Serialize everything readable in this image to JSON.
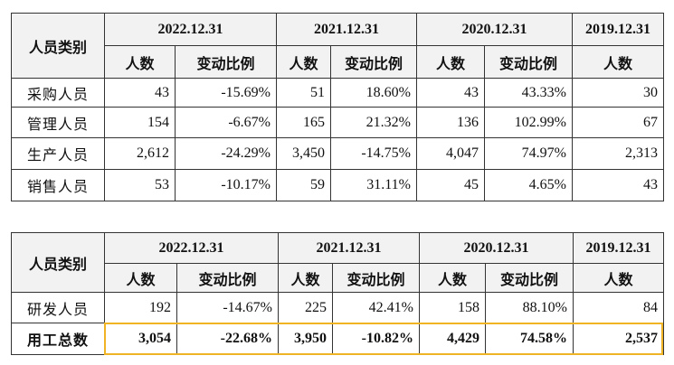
{
  "tables": [
    {
      "header": {
        "category": "人员类别",
        "periods": [
          "2022.12.31",
          "2021.12.31",
          "2020.12.31",
          "2019.12.31"
        ],
        "subheaders": [
          "人数",
          "变动比例",
          "人数",
          "变动比例",
          "人数",
          "变动比例",
          "人数"
        ]
      },
      "rows": [
        [
          "采购人员",
          "43",
          "-15.69%",
          "51",
          "18.60%",
          "43",
          "43.33%",
          "30"
        ],
        [
          "管理人员",
          "154",
          "-6.67%",
          "165",
          "21.32%",
          "136",
          "102.99%",
          "67"
        ],
        [
          "生产人员",
          "2,612",
          "-24.29%",
          "3,450",
          "-14.75%",
          "4,047",
          "74.97%",
          "2,313"
        ],
        [
          "销售人员",
          "53",
          "-10.17%",
          "59",
          "31.11%",
          "45",
          "4.65%",
          "43"
        ]
      ]
    },
    {
      "header": {
        "category": "人员类别",
        "periods": [
          "2022.12.31",
          "2021.12.31",
          "2020.12.31",
          "2019.12.31"
        ],
        "subheaders": [
          "人数",
          "变动比例",
          "人数",
          "变动比例",
          "人数",
          "变动比例",
          "人数"
        ]
      },
      "rows": [
        [
          "研发人员",
          "192",
          "-14.67%",
          "225",
          "42.41%",
          "158",
          "88.10%",
          "84"
        ],
        [
          "用工总数",
          "3,054",
          "-22.68%",
          "3,950",
          "-10.82%",
          "4,429",
          "74.58%",
          "2,537"
        ]
      ]
    }
  ]
}
